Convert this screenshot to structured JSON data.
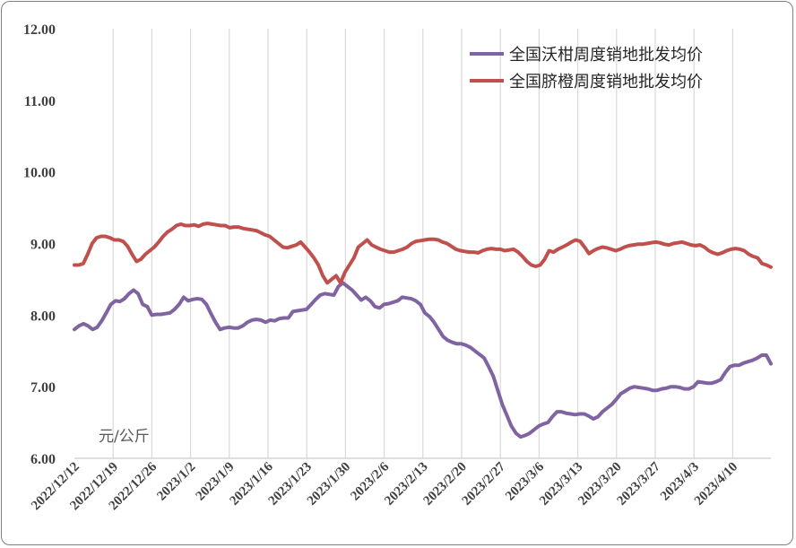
{
  "chart_data": {
    "type": "line",
    "title": "",
    "xlabel": "",
    "ylabel": "",
    "unit_label": "元/公斤",
    "ylim": [
      6.0,
      12.0
    ],
    "y_ticks": [
      "6.00",
      "7.00",
      "8.00",
      "9.00",
      "10.00",
      "11.00",
      "12.00"
    ],
    "x_tick_labels": [
      "2022/12/12",
      "2022/12/19",
      "2022/12/26",
      "2023/1/2",
      "2023/1/9",
      "2023/1/16",
      "2023/1/23",
      "2023/1/30",
      "2023/2/6",
      "2023/2/13",
      "2023/2/20",
      "2023/2/27",
      "2023/3/6",
      "2023/3/13",
      "2023/3/20",
      "2023/3/27",
      "2023/4/3",
      "2023/4/10"
    ],
    "grid": "vertical",
    "legend_position": "top-right",
    "x_start": "2022/12/12",
    "x_end": "2023/4/14",
    "series": [
      {
        "name": "全国沃柑周度销地批发均价",
        "color": "#8064A2",
        "values": [
          7.8,
          7.85,
          7.88,
          7.85,
          7.8,
          7.83,
          7.92,
          8.03,
          8.15,
          8.2,
          8.19,
          8.23,
          8.3,
          8.35,
          8.3,
          8.15,
          8.12,
          8.0,
          8.01,
          8.01,
          8.02,
          8.03,
          8.08,
          8.15,
          8.25,
          8.2,
          8.22,
          8.23,
          8.22,
          8.15,
          8.02,
          7.9,
          7.8,
          7.82,
          7.83,
          7.82,
          7.82,
          7.85,
          7.9,
          7.93,
          7.94,
          7.93,
          7.9,
          7.93,
          7.92,
          7.95,
          7.96,
          7.96,
          8.05,
          8.06,
          8.07,
          8.08,
          8.15,
          8.22,
          8.28,
          8.3,
          8.29,
          8.28,
          8.4,
          8.45,
          8.4,
          8.35,
          8.28,
          8.21,
          8.25,
          8.2,
          8.12,
          8.1,
          8.15,
          8.16,
          8.18,
          8.2,
          8.25,
          8.24,
          8.23,
          8.2,
          8.15,
          8.03,
          7.98,
          7.9,
          7.8,
          7.7,
          7.65,
          7.62,
          7.6,
          7.6,
          7.58,
          7.55,
          7.5,
          7.45,
          7.4,
          7.28,
          7.15,
          6.95,
          6.75,
          6.6,
          6.45,
          6.35,
          6.3,
          6.32,
          6.35,
          6.4,
          6.45,
          6.48,
          6.5,
          6.58,
          6.65,
          6.65,
          6.63,
          6.62,
          6.61,
          6.62,
          6.62,
          6.59,
          6.55,
          6.58,
          6.65,
          6.7,
          6.75,
          6.82,
          6.9,
          6.94,
          6.98,
          7.0,
          6.99,
          6.98,
          6.97,
          6.95,
          6.95,
          6.97,
          6.98,
          7.0,
          7.0,
          6.99,
          6.97,
          6.97,
          7.0,
          7.07,
          7.06,
          7.05,
          7.05,
          7.07,
          7.1,
          7.2,
          7.28,
          7.3,
          7.3,
          7.33,
          7.35,
          7.37,
          7.4,
          7.44,
          7.44,
          7.32
        ]
      },
      {
        "name": "全国脐橙周度销地批发均价",
        "color": "#C0504D",
        "values": [
          8.7,
          8.7,
          8.72,
          8.85,
          9.0,
          9.08,
          9.1,
          9.1,
          9.08,
          9.05,
          9.05,
          9.03,
          8.96,
          8.85,
          8.75,
          8.78,
          8.85,
          8.9,
          8.95,
          9.02,
          9.1,
          9.16,
          9.2,
          9.25,
          9.27,
          9.25,
          9.25,
          9.26,
          9.24,
          9.27,
          9.28,
          9.27,
          9.26,
          9.25,
          9.25,
          9.22,
          9.23,
          9.23,
          9.21,
          9.2,
          9.19,
          9.18,
          9.15,
          9.12,
          9.1,
          9.05,
          9.0,
          8.95,
          8.94,
          8.96,
          8.98,
          9.02,
          8.95,
          8.88,
          8.8,
          8.7,
          8.55,
          8.45,
          8.5,
          8.55,
          8.45,
          8.6,
          8.7,
          8.8,
          8.95,
          9.0,
          9.05,
          8.98,
          8.95,
          8.92,
          8.9,
          8.88,
          8.88,
          8.9,
          8.92,
          8.95,
          9.0,
          9.03,
          9.04,
          9.05,
          9.06,
          9.06,
          9.05,
          9.02,
          9.0,
          8.96,
          8.92,
          8.9,
          8.89,
          8.88,
          8.88,
          8.87,
          8.9,
          8.92,
          8.93,
          8.92,
          8.92,
          8.9,
          8.91,
          8.92,
          8.88,
          8.82,
          8.75,
          8.7,
          8.68,
          8.7,
          8.78,
          8.9,
          8.88,
          8.92,
          8.95,
          8.98,
          9.02,
          9.05,
          9.03,
          8.95,
          8.86,
          8.9,
          8.93,
          8.95,
          8.94,
          8.92,
          8.9,
          8.92,
          8.95,
          8.97,
          8.98,
          8.99,
          8.99,
          9.0,
          9.01,
          9.02,
          9.01,
          8.99,
          8.98,
          9.0,
          9.01,
          9.02,
          9.0,
          8.98,
          8.97,
          8.98,
          8.95,
          8.9,
          8.87,
          8.85,
          8.87,
          8.9,
          8.92,
          8.93,
          8.92,
          8.9,
          8.85,
          8.82,
          8.8,
          8.72,
          8.7,
          8.67
        ]
      }
    ]
  }
}
